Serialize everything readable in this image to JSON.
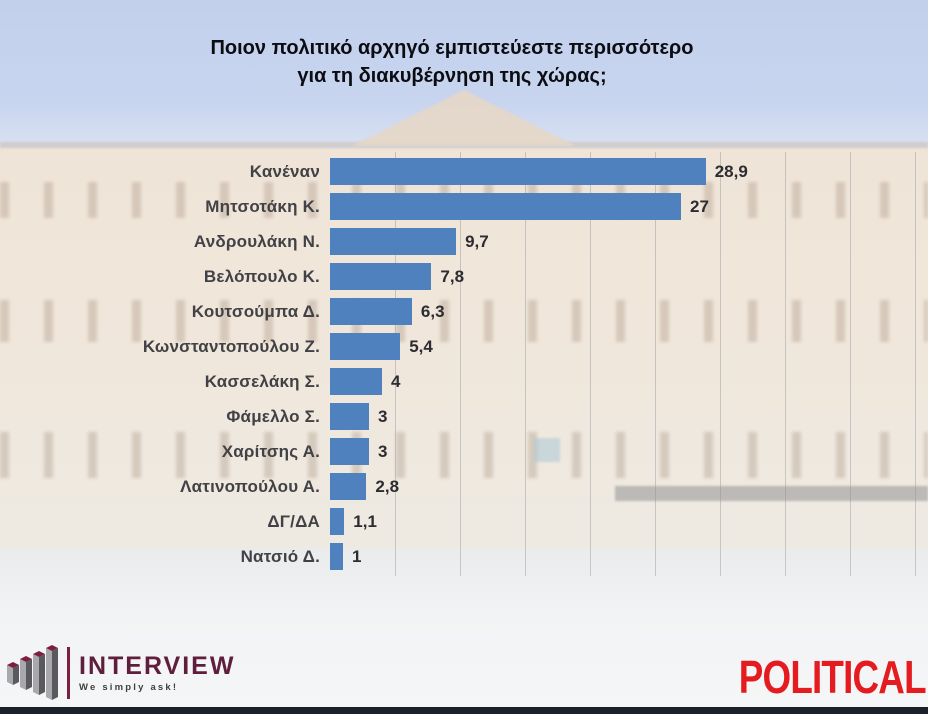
{
  "title": {
    "line1": "Ποιον πολιτικό αρχηγό εμπιστεύεστε περισσότερο",
    "line2": "για τη διακυβέρνηση της χώρας;"
  },
  "chart_data": {
    "type": "bar",
    "orientation": "horizontal",
    "title": "Ποιον πολιτικό αρχηγό εμπιστεύεστε περισσότερο για τη διακυβέρνηση της χώρας;",
    "categories": [
      "Κανέναν",
      "Μητσοτάκη Κ.",
      "Ανδρουλάκη Ν.",
      "Βελόπουλο Κ.",
      "Κουτσούμπα Δ.",
      "Κωνσταντοπούλου Ζ.",
      "Κασσελάκη Σ.",
      "Φάμελλο Σ.",
      "Χαρίτσης Α.",
      "Λατινοπούλου Α.",
      "ΔΓ/ΔΑ",
      "Νατσιό Δ."
    ],
    "values": [
      28.9,
      27,
      9.7,
      7.8,
      6.3,
      5.4,
      4,
      3,
      3,
      2.8,
      1.1,
      1
    ],
    "value_labels": [
      "28,9",
      "27",
      "9,7",
      "7,8",
      "6,3",
      "5,4",
      "4",
      "3",
      "3",
      "2,8",
      "1,1",
      "1"
    ],
    "bar_color": "#4e81bd",
    "xlim": [
      0,
      45
    ],
    "gridline_interval": 5,
    "grid": true,
    "legend_position": "none",
    "value_labels_position": "end-of-bar"
  },
  "footer": {
    "interview_logo": {
      "name": "INTERVIEW",
      "tagline": "We simply ask!",
      "brand_color": "#5e1e3c"
    },
    "political_logo": {
      "text": "POLITICAL",
      "color": "#e41b1f"
    }
  },
  "colors": {
    "bar_blue": "#4e81bd",
    "sky": "#c5d3ee",
    "building": "#efe4d7",
    "bottom_strip": "#1a212b",
    "label_text": "#414146",
    "title_text": "#0c0c13"
  }
}
